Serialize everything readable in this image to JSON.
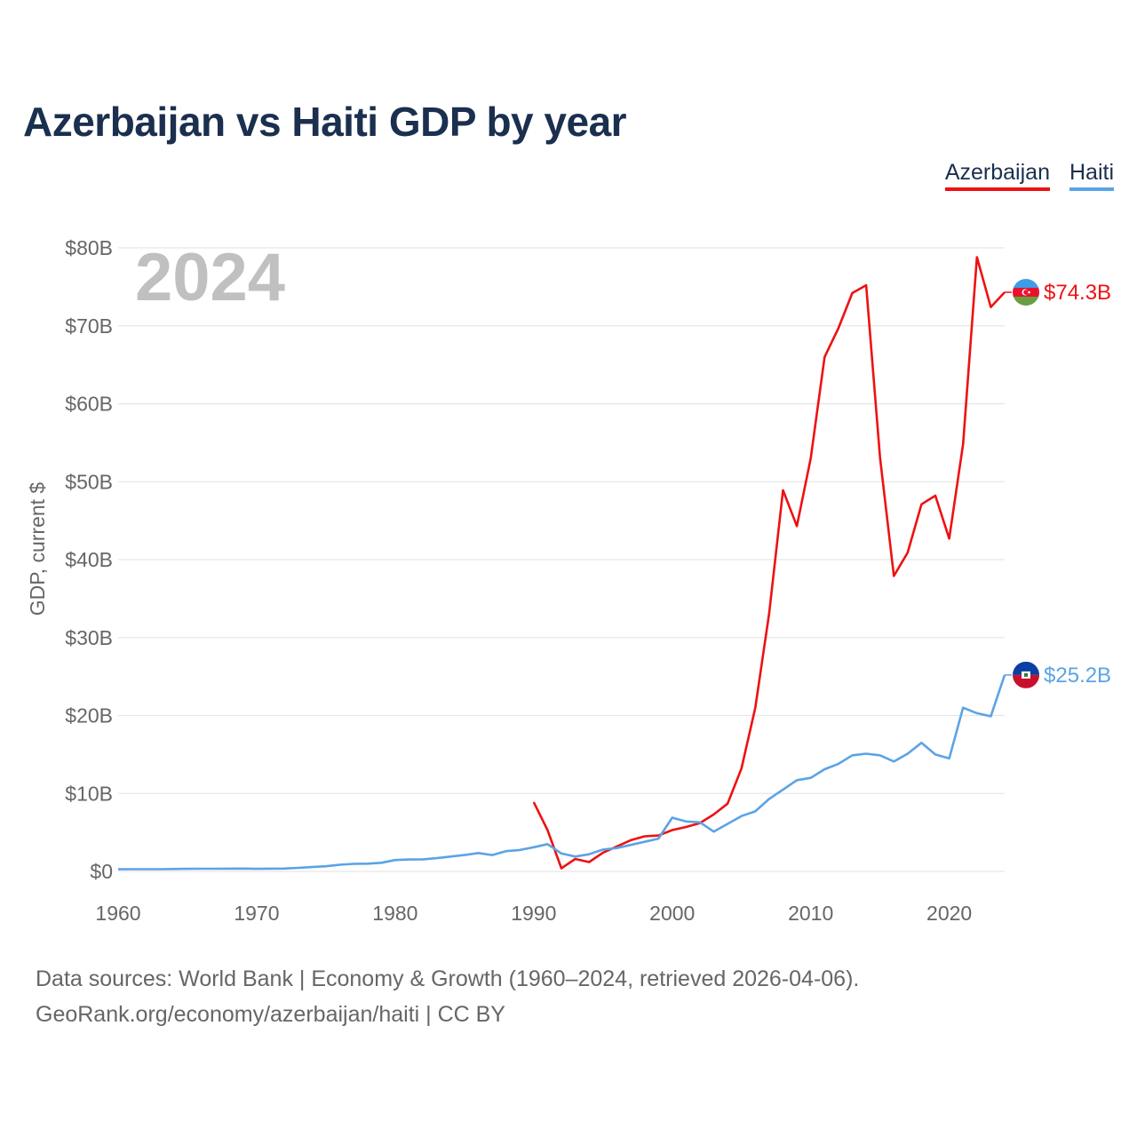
{
  "title": "Azerbaijan vs Haiti GDP by year",
  "legend": {
    "azerbaijan": "Azerbaijan",
    "haiti": "Haiti"
  },
  "footer": {
    "line1": "Data sources: World Bank | Economy & Growth (1960–2024, retrieved 2026-04-06).",
    "line2": "GeoRank.org/economy/azerbaijan/haiti | CC BY"
  },
  "colors": {
    "azerbaijan": "#ee1111",
    "haiti": "#5ba3e6",
    "grid": "#e6e6e6",
    "text": "#666666",
    "title": "#1b2f4f"
  },
  "chart_data": {
    "type": "line",
    "title": "Azerbaijan vs Haiti GDP by year",
    "ylabel": "GDP, current $",
    "xlabel": "",
    "year_label": "2024",
    "xlim": [
      1960,
      2024
    ],
    "ylim": [
      0,
      80
    ],
    "unit": "billion current US$",
    "x_ticks": [
      1960,
      1970,
      1980,
      1990,
      2000,
      2010,
      2020
    ],
    "y_ticks": [
      0,
      10,
      20,
      30,
      40,
      50,
      60,
      70,
      80
    ],
    "y_tick_labels": [
      "$0",
      "$10B",
      "$20B",
      "$30B",
      "$40B",
      "$50B",
      "$60B",
      "$70B",
      "$80B"
    ],
    "series": [
      {
        "name": "Azerbaijan",
        "color": "#ee1111",
        "end_label": "$74.3B",
        "flag": "azerbaijan-flag-icon",
        "x": [
          1990,
          1991,
          1992,
          1993,
          1994,
          1995,
          1996,
          1997,
          1998,
          1999,
          2000,
          2001,
          2002,
          2003,
          2004,
          2005,
          2006,
          2007,
          2008,
          2009,
          2010,
          2011,
          2012,
          2013,
          2014,
          2015,
          2016,
          2017,
          2018,
          2019,
          2020,
          2021,
          2022,
          2023,
          2024
        ],
        "values": [
          8.9,
          5.3,
          0.4,
          1.6,
          1.2,
          2.4,
          3.2,
          4.0,
          4.5,
          4.6,
          5.3,
          5.7,
          6.2,
          7.3,
          8.7,
          13.2,
          21.0,
          33.1,
          48.9,
          44.3,
          53.0,
          66.0,
          69.7,
          74.2,
          75.2,
          53.1,
          37.9,
          40.9,
          47.1,
          48.2,
          42.7,
          54.8,
          78.8,
          72.4,
          74.3
        ]
      },
      {
        "name": "Haiti",
        "color": "#5ba3e6",
        "end_label": "$25.2B",
        "flag": "haiti-flag-icon",
        "x": [
          1960,
          1961,
          1962,
          1963,
          1964,
          1965,
          1966,
          1967,
          1968,
          1969,
          1970,
          1971,
          1972,
          1973,
          1974,
          1975,
          1976,
          1977,
          1978,
          1979,
          1980,
          1981,
          1982,
          1983,
          1984,
          1985,
          1986,
          1987,
          1988,
          1989,
          1990,
          1991,
          1992,
          1993,
          1994,
          1995,
          1996,
          1997,
          1998,
          1999,
          2000,
          2001,
          2002,
          2003,
          2004,
          2005,
          2006,
          2007,
          2008,
          2009,
          2010,
          2011,
          2012,
          2013,
          2014,
          2015,
          2016,
          2017,
          2018,
          2019,
          2020,
          2021,
          2022,
          2023,
          2024
        ],
        "values": [
          0.27,
          0.28,
          0.28,
          0.29,
          0.31,
          0.33,
          0.34,
          0.34,
          0.35,
          0.36,
          0.33,
          0.35,
          0.37,
          0.46,
          0.56,
          0.66,
          0.86,
          0.97,
          0.99,
          1.1,
          1.46,
          1.53,
          1.55,
          1.7,
          1.9,
          2.1,
          2.36,
          2.1,
          2.6,
          2.75,
          3.1,
          3.5,
          2.3,
          1.9,
          2.2,
          2.8,
          3.0,
          3.4,
          3.8,
          4.2,
          6.9,
          6.4,
          6.3,
          5.1,
          6.1,
          7.1,
          7.7,
          9.3,
          10.5,
          11.7,
          12.0,
          13.1,
          13.8,
          14.9,
          15.1,
          14.9,
          14.1,
          15.1,
          16.5,
          15.0,
          14.5,
          21.0,
          20.3,
          19.9,
          25.2
        ]
      }
    ]
  }
}
